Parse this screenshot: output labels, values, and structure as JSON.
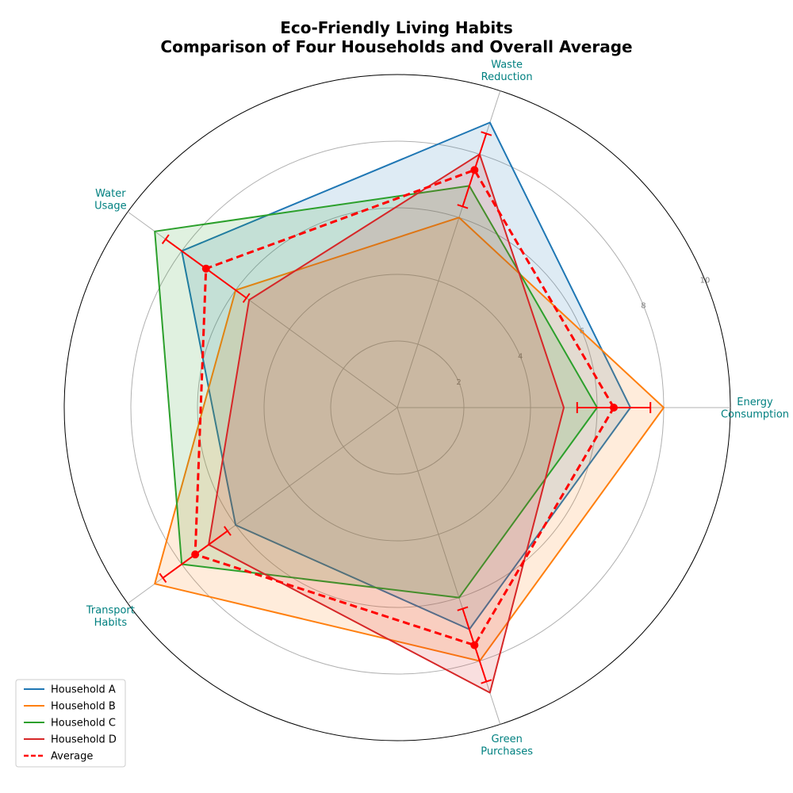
{
  "chart_data": {
    "type": "radar",
    "title_line1": "Eco-Friendly Living Habits",
    "title_line2": "Comparison of Four Households and Overall Average",
    "categories": [
      {
        "line1": "Energy",
        "line2": "Consumption"
      },
      {
        "line1": "Waste",
        "line2": "Reduction"
      },
      {
        "line1": "Water",
        "line2": "Usage"
      },
      {
        "line1": "Transport",
        "line2": "Habits"
      },
      {
        "line1": "Green",
        "line2": "Purchases"
      }
    ],
    "rlim": [
      0,
      10
    ],
    "rticks": [
      2,
      4,
      6,
      8,
      10
    ],
    "grid": true,
    "legend_position": "lower-left",
    "series": [
      {
        "name": "Household A",
        "color": "#1f77b4",
        "values": [
          7,
          9,
          8,
          6,
          7
        ]
      },
      {
        "name": "Household B",
        "color": "#ff7f0e",
        "values": [
          8,
          6,
          6,
          9,
          8
        ]
      },
      {
        "name": "Household C",
        "color": "#2ca02c",
        "values": [
          6,
          7,
          9,
          8,
          6
        ]
      },
      {
        "name": "Household D",
        "color": "#d62728",
        "values": [
          5,
          8,
          5.5,
          7,
          9
        ]
      }
    ],
    "average": {
      "name": "Average",
      "color": "#ff0000",
      "values": [
        6.5,
        7.5,
        7.1,
        7.5,
        7.5
      ],
      "error": [
        1.1,
        1.15,
        1.5,
        1.2,
        1.15
      ]
    }
  }
}
